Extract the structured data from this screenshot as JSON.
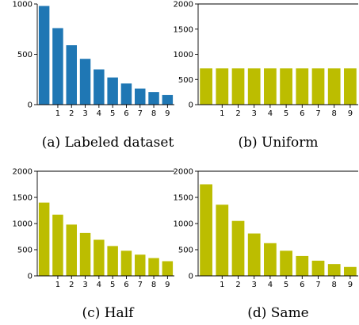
{
  "chart_data": [
    {
      "type": "bar",
      "caption": "(a) Labeled dataset",
      "categories": [
        "0",
        "1",
        "2",
        "3",
        "4",
        "5",
        "6",
        "7",
        "8",
        "9"
      ],
      "visible_tick_labels": [
        "1",
        "2",
        "3",
        "4",
        "5",
        "6",
        "7",
        "8",
        "9"
      ],
      "values": [
        980,
        760,
        590,
        455,
        350,
        270,
        210,
        160,
        125,
        95
      ],
      "ylim": [
        0,
        1000
      ],
      "yticks": [
        0,
        500,
        1000
      ],
      "color": "#1f77b4",
      "grid": false
    },
    {
      "type": "bar",
      "caption": "(b) Uniform",
      "categories": [
        "0",
        "1",
        "2",
        "3",
        "4",
        "5",
        "6",
        "7",
        "8",
        "9"
      ],
      "visible_tick_labels": [
        "1",
        "2",
        "3",
        "4",
        "5",
        "6",
        "7",
        "8",
        "9"
      ],
      "values": [
        720,
        720,
        720,
        720,
        720,
        720,
        720,
        720,
        720,
        720
      ],
      "ylim": [
        0,
        2000
      ],
      "yticks": [
        0,
        500,
        1000,
        1500,
        2000
      ],
      "color": "#bcbd00",
      "grid": false
    },
    {
      "type": "bar",
      "caption": "(c) Half",
      "categories": [
        "0",
        "1",
        "2",
        "3",
        "4",
        "5",
        "6",
        "7",
        "8",
        "9"
      ],
      "visible_tick_labels": [
        "1",
        "2",
        "3",
        "4",
        "5",
        "6",
        "7",
        "8",
        "9"
      ],
      "values": [
        1400,
        1170,
        980,
        820,
        690,
        570,
        480,
        405,
        340,
        280
      ],
      "ylim": [
        0,
        2000
      ],
      "yticks": [
        0,
        500,
        1000,
        1500,
        2000
      ],
      "color": "#bcbd00",
      "grid": false
    },
    {
      "type": "bar",
      "caption": "(d) Same",
      "categories": [
        "0",
        "1",
        "2",
        "3",
        "4",
        "5",
        "6",
        "7",
        "8",
        "9"
      ],
      "visible_tick_labels": [
        "1",
        "2",
        "3",
        "4",
        "5",
        "6",
        "7",
        "8",
        "9"
      ],
      "values": [
        1750,
        1360,
        1050,
        810,
        625,
        480,
        380,
        290,
        225,
        170
      ],
      "ylim": [
        0,
        2000
      ],
      "yticks": [
        0,
        500,
        1000,
        1500,
        2000
      ],
      "color": "#bcbd00",
      "grid": false
    }
  ]
}
